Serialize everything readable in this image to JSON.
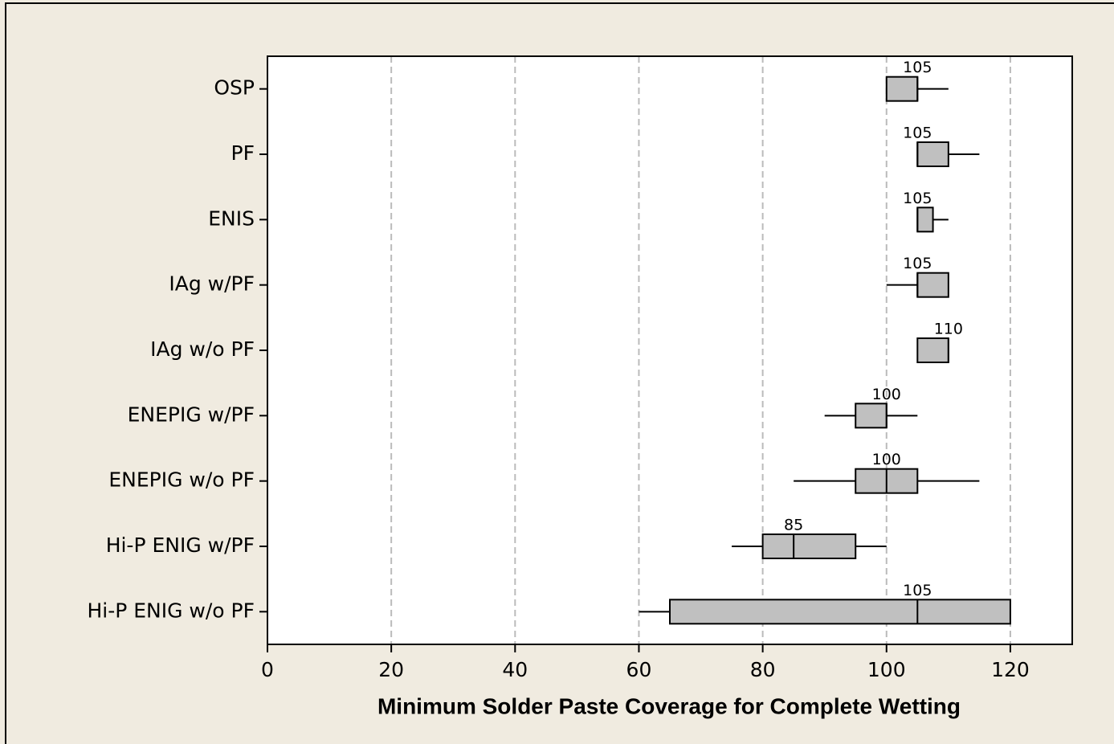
{
  "chart_data": {
    "type": "boxplot",
    "orientation": "horizontal",
    "xlabel": "Minimum Solder Paste Coverage for Complete Wetting",
    "categories": [
      "OSP",
      "PF",
      "ENIS",
      "IAg w/PF",
      "IAg w/o PF",
      "ENEPIG w/PF",
      "ENEPIG w/o PF",
      "Hi-P ENIG w/PF",
      "Hi-P ENIG w/o PF"
    ],
    "boxes": [
      {
        "min": 100,
        "q1": 100,
        "median": 105,
        "q3": 105,
        "max": 110
      },
      {
        "min": 105,
        "q1": 105,
        "median": 105,
        "q3": 110,
        "max": 115
      },
      {
        "min": 105,
        "q1": 105,
        "median": 105,
        "q3": 107.5,
        "max": 110
      },
      {
        "min": 100,
        "q1": 105,
        "median": 105,
        "q3": 110,
        "max": 110
      },
      {
        "min": 105,
        "q1": 105,
        "median": 110,
        "q3": 110,
        "max": 110
      },
      {
        "min": 90,
        "q1": 95,
        "median": 100,
        "q3": 100,
        "max": 105
      },
      {
        "min": 85,
        "q1": 95,
        "median": 100,
        "q3": 105,
        "max": 115
      },
      {
        "min": 75,
        "q1": 80,
        "median": 85,
        "q3": 95,
        "max": 100
      },
      {
        "min": 60,
        "q1": 65,
        "median": 105,
        "q3": 120,
        "max": 120
      }
    ],
    "color": "#c0c0c0",
    "xlim": [
      0,
      130
    ],
    "xticks": [
      0,
      20,
      40,
      60,
      80,
      100,
      120
    ],
    "grid": true
  }
}
